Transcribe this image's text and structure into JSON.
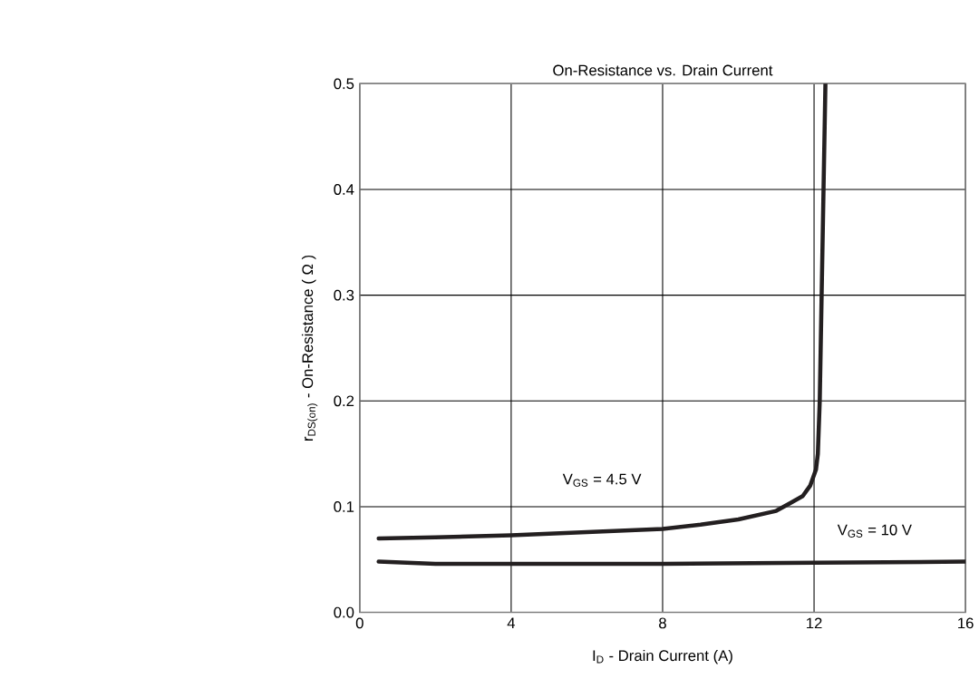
{
  "chart_data": {
    "type": "line",
    "title": "On-Resistance vs. Drain Current",
    "xlabel": "I$_{D}$  -  Drain Current (A)",
    "ylabel": "r$_{DS(on)}$  -  On-Resistance ( Ω )",
    "xlim": [
      0,
      16
    ],
    "ylim": [
      0,
      0.5
    ],
    "xticks": [
      0,
      4,
      8,
      12,
      16
    ],
    "yticks": [
      {
        "value": 0,
        "label": "0.0"
      },
      0.1,
      0.2,
      0.3,
      0.4,
      0.5
    ],
    "grid": true,
    "legend": false,
    "line_style": "solid",
    "marker": "none",
    "series": [
      {
        "name": "V$_{GS}$  = 4.5 V",
        "color": "#231f20",
        "x": [
          0.5,
          2,
          4,
          6,
          8,
          9,
          10,
          11,
          11.35,
          11.7,
          11.9,
          12.05,
          12.1,
          12.15,
          12.2,
          12.25,
          12.3
        ],
        "values": [
          0.07,
          0.071,
          0.073,
          0.076,
          0.079,
          0.083,
          0.088,
          0.096,
          0.103,
          0.11,
          0.12,
          0.135,
          0.15,
          0.2,
          0.3,
          0.4,
          0.5
        ]
      },
      {
        "name": "V$_{GS}$  = 10 V",
        "color": "#231f20",
        "x": [
          0.5,
          2,
          4,
          8,
          12,
          16
        ],
        "values": [
          0.048,
          0.046,
          0.046,
          0.046,
          0.047,
          0.048
        ]
      }
    ]
  }
}
